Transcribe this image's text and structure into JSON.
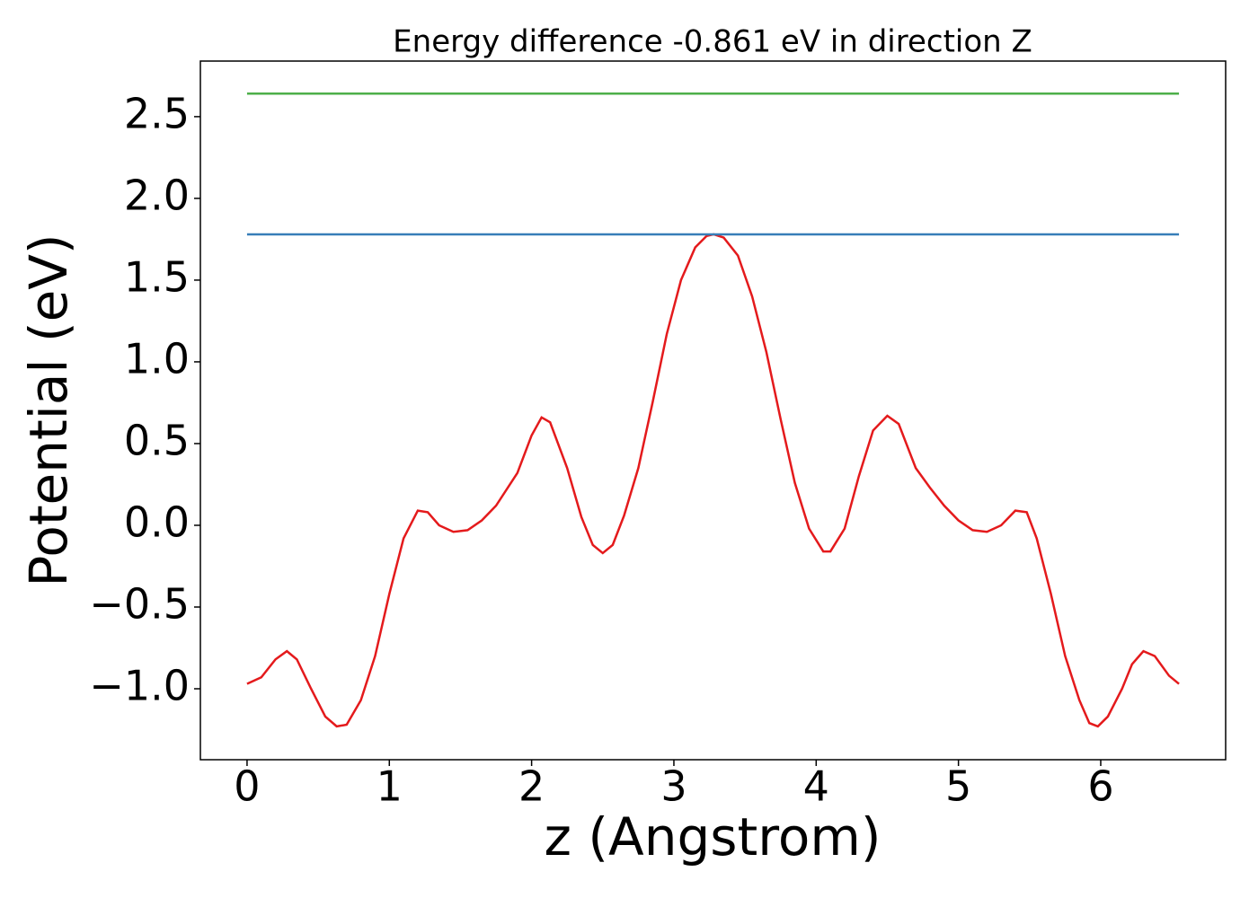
{
  "chart_data": {
    "type": "line",
    "title": "Energy difference -0.861 eV in direction Z",
    "x_label": "z (Angstrom)",
    "y_label": "Potential (eV)",
    "xlim": [
      -0.328,
      6.878
    ],
    "ylim": [
      -1.434,
      2.84
    ],
    "xticks": [
      0,
      1,
      2,
      3,
      4,
      5,
      6
    ],
    "yticks": [
      {
        "value": -1.0,
        "label": "−1.0"
      },
      {
        "value": -0.5,
        "label": "−0.5"
      },
      {
        "value": 0.0,
        "label": "0.0"
      },
      {
        "value": 0.5,
        "label": "0.5"
      },
      {
        "value": 1.0,
        "label": "1.0"
      },
      {
        "value": 1.5,
        "label": "1.5"
      },
      {
        "value": 2.0,
        "label": "2.0"
      },
      {
        "value": 2.5,
        "label": "2.5"
      }
    ],
    "series": [
      {
        "color": "#e41a1c",
        "x": [
          0,
          0.1,
          0.2,
          0.28,
          0.35,
          0.45,
          0.55,
          0.63,
          0.7,
          0.8,
          0.9,
          1.0,
          1.1,
          1.2,
          1.27,
          1.35,
          1.45,
          1.55,
          1.65,
          1.75,
          1.9,
          2.0,
          2.07,
          2.13,
          2.25,
          2.35,
          2.43,
          2.5,
          2.57,
          2.65,
          2.75,
          2.85,
          2.95,
          3.05,
          3.15,
          3.23,
          3.28,
          3.35,
          3.45,
          3.55,
          3.65,
          3.75,
          3.85,
          3.95,
          4.05,
          4.1,
          4.2,
          4.3,
          4.4,
          4.5,
          4.58,
          4.7,
          4.8,
          4.9,
          5.0,
          5.1,
          5.2,
          5.3,
          5.4,
          5.48,
          5.55,
          5.65,
          5.75,
          5.85,
          5.92,
          5.98,
          6.05,
          6.15,
          6.22,
          6.3,
          6.38,
          6.48,
          6.55
        ],
        "values": [
          -0.97,
          -0.93,
          -0.82,
          -0.77,
          -0.82,
          -1.0,
          -1.17,
          -1.23,
          -1.22,
          -1.07,
          -0.8,
          -0.42,
          -0.08,
          0.09,
          0.08,
          0.0,
          -0.04,
          -0.03,
          0.03,
          0.12,
          0.32,
          0.55,
          0.66,
          0.63,
          0.35,
          0.05,
          -0.12,
          -0.17,
          -0.12,
          0.06,
          0.35,
          0.75,
          1.17,
          1.5,
          1.7,
          1.77,
          1.78,
          1.76,
          1.65,
          1.4,
          1.06,
          0.65,
          0.26,
          -0.02,
          -0.16,
          -0.16,
          -0.02,
          0.3,
          0.58,
          0.67,
          0.62,
          0.35,
          0.23,
          0.12,
          0.03,
          -0.03,
          -0.04,
          0.0,
          0.09,
          0.08,
          -0.08,
          -0.42,
          -0.8,
          -1.07,
          -1.21,
          -1.23,
          -1.17,
          -1.0,
          -0.85,
          -0.77,
          -0.8,
          -0.92,
          -0.97
        ]
      },
      {
        "color": "#377eb8",
        "x": [
          0,
          6.55
        ],
        "values": [
          1.78,
          1.78
        ]
      },
      {
        "color": "#4daf4a",
        "x": [
          0,
          6.55
        ],
        "values": [
          2.641,
          2.641
        ]
      }
    ]
  }
}
